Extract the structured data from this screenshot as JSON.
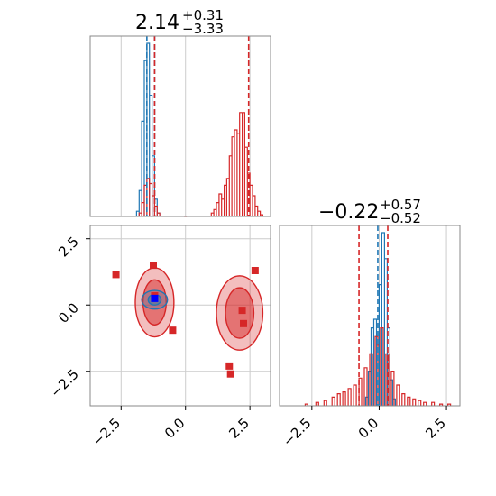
{
  "chart_data": {
    "type": "corner",
    "colors": {
      "blue": "#1f77b4",
      "red": "#d62728"
    },
    "grid": true,
    "panels": [
      {
        "panel": "hist-x",
        "type": "histogram",
        "title": {
          "value": "2.14",
          "plus": "+0.31",
          "minus": "−3.33"
        },
        "xlim": [
          -3.7,
          3.3
        ],
        "blue_hist": {
          "x": [
            -1.85,
            -1.75,
            -1.65,
            -1.55,
            -1.45,
            -1.35,
            -1.25,
            -1.15,
            -1.05
          ],
          "height": [
            0.03,
            0.15,
            0.55,
            0.9,
            1.0,
            0.7,
            0.35,
            0.1,
            0.02
          ]
        },
        "red_hist": {
          "x": [
            -1.75,
            -1.65,
            -1.55,
            -1.45,
            -1.35,
            -1.25,
            -1.15,
            -1.05,
            0.0,
            1.05,
            1.15,
            1.25,
            1.35,
            1.45,
            1.55,
            1.65,
            1.75,
            1.85,
            1.95,
            2.05,
            2.15,
            2.25,
            2.35,
            2.45,
            2.55,
            2.65,
            2.75,
            2.85,
            2.95
          ],
          "height": [
            0.02,
            0.08,
            0.18,
            0.22,
            0.19,
            0.12,
            0.06,
            0.02,
            0.0,
            0.02,
            0.04,
            0.08,
            0.13,
            0.1,
            0.18,
            0.22,
            0.35,
            0.46,
            0.5,
            0.48,
            0.6,
            0.6,
            0.4,
            0.25,
            0.18,
            0.12,
            0.06,
            0.03,
            0.01
          ]
        },
        "lines": [
          {
            "x": -1.5,
            "color": "blue"
          },
          {
            "x": -1.2,
            "color": "blue"
          },
          {
            "x": -1.2,
            "color": "red"
          },
          {
            "x": 2.45,
            "color": "red"
          }
        ]
      },
      {
        "panel": "hist-y",
        "type": "histogram",
        "title": {
          "value": "−0.22",
          "plus": "+0.57",
          "minus": "−0.52"
        },
        "xlim": [
          -3.7,
          3.0
        ],
        "xticks": [
          "−2.5",
          "0.0",
          "2.5"
        ],
        "blue_hist": {
          "x": [
            -0.45,
            -0.35,
            -0.25,
            -0.15,
            -0.05,
            0.05,
            0.15,
            0.25,
            0.35,
            0.45,
            0.55
          ],
          "height": [
            0.05,
            0.2,
            0.45,
            0.5,
            0.35,
            0.7,
            1.0,
            0.85,
            0.45,
            0.15,
            0.04
          ]
        },
        "red_hist": {
          "x": [
            -2.7,
            -2.3,
            -2.0,
            -1.7,
            -1.5,
            -1.3,
            -1.1,
            -0.9,
            -0.7,
            -0.5,
            -0.3,
            -0.1,
            0.1,
            0.3,
            0.5,
            0.7,
            0.9,
            1.1,
            1.3,
            1.5,
            1.7,
            2.0,
            2.3,
            2.6
          ],
          "height": [
            0.01,
            0.02,
            0.03,
            0.05,
            0.07,
            0.08,
            0.1,
            0.12,
            0.16,
            0.22,
            0.3,
            0.4,
            0.45,
            0.3,
            0.2,
            0.12,
            0.07,
            0.05,
            0.04,
            0.03,
            0.02,
            0.02,
            0.01,
            0.01
          ]
        },
        "lines": [
          {
            "x": -0.75,
            "color": "red"
          },
          {
            "x": -0.05,
            "color": "blue"
          },
          {
            "x": 0.32,
            "color": "red"
          }
        ]
      },
      {
        "panel": "scatter-2d",
        "type": "contour",
        "xlim": [
          -3.7,
          3.3
        ],
        "ylim": [
          -3.8,
          3.0
        ],
        "xticks": [
          "−2.5",
          "0.0",
          "2.5"
        ],
        "yticks": [
          "−2.5",
          "0.0",
          "2.5"
        ],
        "red_points": [
          {
            "x": -2.7,
            "y": 1.15
          },
          {
            "x": -1.25,
            "y": 1.5
          },
          {
            "x": -1.2,
            "y": 0.35
          },
          {
            "x": -0.5,
            "y": -0.95
          },
          {
            "x": 2.7,
            "y": 1.3
          },
          {
            "x": 2.2,
            "y": -0.2
          },
          {
            "x": 2.25,
            "y": -0.7
          },
          {
            "x": 1.7,
            "y": -2.3
          },
          {
            "x": 1.75,
            "y": -2.6
          }
        ],
        "blue_points": [
          {
            "x": -1.2,
            "y": 0.25
          }
        ],
        "contours": [
          {
            "color": "red",
            "cx": -1.2,
            "cy": 0.1,
            "rx": 0.75,
            "ry": 1.3,
            "alpha": 0.3
          },
          {
            "color": "red",
            "cx": -1.2,
            "cy": 0.1,
            "rx": 0.45,
            "ry": 0.85,
            "alpha": 0.5
          },
          {
            "color": "red",
            "cx": 2.1,
            "cy": -0.3,
            "rx": 0.9,
            "ry": 1.4,
            "alpha": 0.3
          },
          {
            "color": "red",
            "cx": 2.1,
            "cy": -0.3,
            "rx": 0.55,
            "ry": 0.95,
            "alpha": 0.5
          },
          {
            "color": "blue",
            "cx": -1.2,
            "cy": 0.2,
            "rx": 0.5,
            "ry": 0.35,
            "alpha": 0.25
          },
          {
            "color": "blue",
            "cx": -1.2,
            "cy": 0.2,
            "rx": 0.25,
            "ry": 0.2,
            "alpha": 0.45
          }
        ]
      }
    ]
  }
}
